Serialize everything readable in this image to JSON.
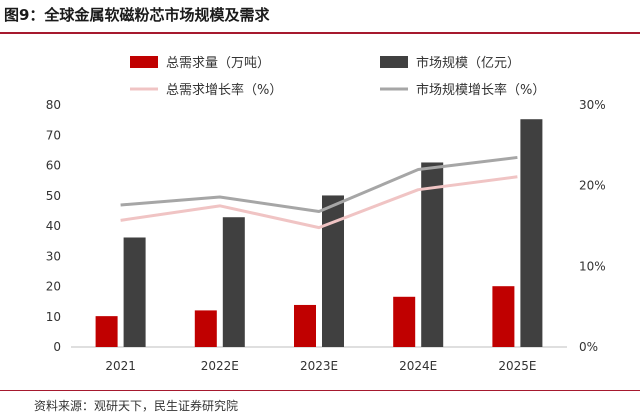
{
  "title": "图9：全球金属软磁粉芯市场规模及需求",
  "source": "资料来源：观研天下，民生证券研究院",
  "chart_data": {
    "type": "bar",
    "categories": [
      "2021",
      "2022E",
      "2023E",
      "2024E",
      "2025E"
    ],
    "series": [
      {
        "name": "总需求量（万吨）",
        "kind": "bar",
        "axis": "left",
        "color": "#c00000",
        "values": [
          10.2,
          12.1,
          13.9,
          16.6,
          20.1
        ]
      },
      {
        "name": "市场规模（亿元）",
        "kind": "bar",
        "axis": "left",
        "color": "#404040",
        "values": [
          36.2,
          42.9,
          50.1,
          61.0,
          75.3
        ]
      },
      {
        "name": "总需求增长率（%）",
        "kind": "line",
        "axis": "right",
        "color": "#f0c4c4",
        "values": [
          15.7,
          17.5,
          14.8,
          19.5,
          21.1
        ]
      },
      {
        "name": "市场规模增长率（%）",
        "kind": "line",
        "axis": "right",
        "color": "#a6a6a6",
        "values": [
          17.6,
          18.6,
          16.8,
          22.0,
          23.5
        ]
      }
    ],
    "ylim": [
      0,
      80
    ],
    "yticks": [
      "0",
      "10",
      "20",
      "30",
      "40",
      "50",
      "60",
      "70",
      "80"
    ],
    "y2lim": [
      0,
      30
    ],
    "y2ticks": [
      "0%",
      "10%",
      "20%",
      "30%"
    ],
    "legend": "top",
    "xlabel": "",
    "ylabel": "",
    "y2label": ""
  }
}
